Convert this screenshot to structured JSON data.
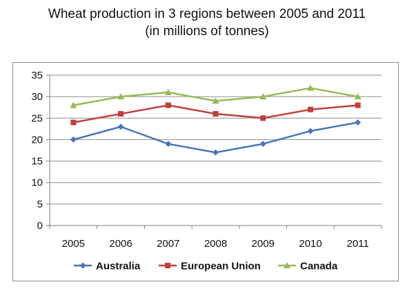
{
  "chart_data": {
    "type": "line",
    "title": "Wheat production in 3 regions between 2005 and 2011",
    "subtitle": "(in millions of tonnes)",
    "xlabel": "",
    "ylabel": "",
    "categories": [
      "2005",
      "2006",
      "2007",
      "2008",
      "2009",
      "2010",
      "2011"
    ],
    "ylim": [
      0,
      35
    ],
    "yticks": [
      0,
      5,
      10,
      15,
      20,
      25,
      30,
      35
    ],
    "grid": true,
    "legend_position": "bottom",
    "series": [
      {
        "name": "Australia",
        "values": [
          20,
          23,
          19,
          17,
          19,
          22,
          24
        ],
        "color": "#4a76b8",
        "marker": "diamond"
      },
      {
        "name": "European Union",
        "values": [
          24,
          26,
          28,
          26,
          25,
          27,
          28
        ],
        "color": "#bf3f3c",
        "marker": "square"
      },
      {
        "name": "Canada",
        "values": [
          28,
          30,
          31,
          29,
          30,
          32,
          30
        ],
        "color": "#98b954",
        "marker": "triangle"
      }
    ]
  }
}
